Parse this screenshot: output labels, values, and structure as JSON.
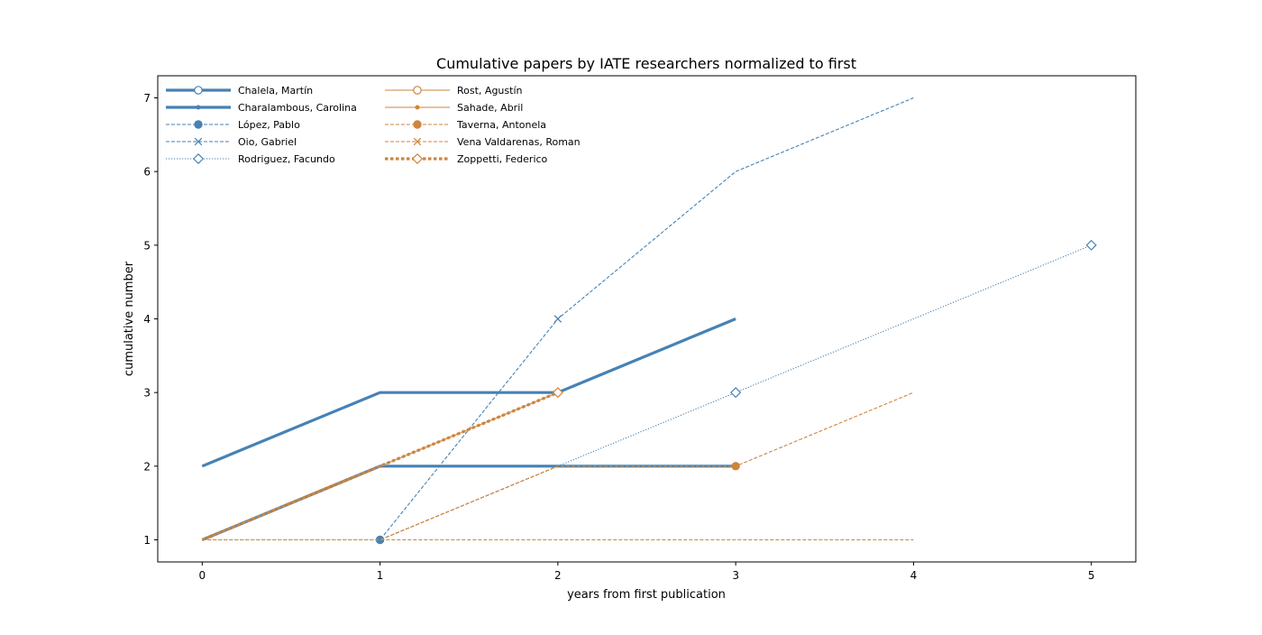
{
  "chart_data": {
    "type": "line",
    "title": "Cumulative papers by IATE researchers normalized to first",
    "xlabel": "years from first publication",
    "ylabel": "cumulative number",
    "xlim": [
      -0.25,
      5.25
    ],
    "ylim": [
      0.7,
      7.3
    ],
    "xticks": [
      0,
      1,
      2,
      3,
      4,
      5
    ],
    "yticks": [
      1,
      2,
      3,
      4,
      5,
      6,
      7
    ],
    "grid": false,
    "legend_position": "top-left",
    "legend_columns": 2,
    "colors": {
      "blue": "#4682b4",
      "orange": "#cd853f"
    },
    "series": [
      {
        "name": "Chalela, Martín",
        "x": [
          0,
          1,
          2,
          3
        ],
        "y": [
          2,
          3,
          3,
          4
        ],
        "color": "#4682b4",
        "line": "solid",
        "weight": "thick",
        "marker": "circle-open",
        "marker_points": []
      },
      {
        "name": "Charalambous, Carolina",
        "x": [
          0,
          1,
          2,
          3
        ],
        "y": [
          1,
          2,
          2,
          2
        ],
        "color": "#4682b4",
        "line": "solid",
        "weight": "thick",
        "marker": "point",
        "marker_points": []
      },
      {
        "name": "López, Pablo",
        "x": [
          0,
          1
        ],
        "y": [
          1,
          1
        ],
        "color": "#4682b4",
        "line": "dashed",
        "weight": "thin",
        "marker": "circle-filled",
        "marker_points": [
          1
        ]
      },
      {
        "name": "Oio, Gabriel",
        "x": [
          0,
          1,
          2,
          3,
          4
        ],
        "y": [
          1,
          1,
          4,
          6,
          7
        ],
        "color": "#4682b4",
        "line": "dashed",
        "weight": "thin",
        "marker": "x",
        "marker_points": [
          2
        ]
      },
      {
        "name": "Rodriguez, Facundo",
        "x": [
          0,
          1,
          2,
          3,
          4,
          5
        ],
        "y": [
          1,
          1,
          2,
          3,
          4,
          5
        ],
        "color": "#4682b4",
        "line": "dotted",
        "weight": "thin",
        "marker": "diamond-open",
        "marker_points": [
          3,
          5
        ]
      },
      {
        "name": "Rost, Agustín",
        "x": [
          0,
          1,
          2
        ],
        "y": [
          1,
          2,
          3
        ],
        "color": "#cd853f",
        "line": "solid",
        "weight": "thin",
        "marker": "circle-open",
        "marker_points": []
      },
      {
        "name": "Sahade, Abril",
        "x": [
          0,
          1
        ],
        "y": [
          1,
          2
        ],
        "color": "#cd853f",
        "line": "solid",
        "weight": "thin",
        "marker": "point",
        "marker_points": []
      },
      {
        "name": "Taverna, Antonela",
        "x": [
          0,
          1,
          2,
          3
        ],
        "y": [
          1,
          1,
          2,
          2
        ],
        "color": "#cd853f",
        "line": "dashed",
        "weight": "thin",
        "marker": "circle-filled",
        "marker_points": [
          3
        ]
      },
      {
        "name": "Vena Valdarenas, Roman",
        "x": [
          0,
          1,
          2,
          3,
          4
        ],
        "y": [
          1,
          1,
          1,
          1,
          1
        ],
        "color": "#cd853f",
        "line": "dashed",
        "weight": "thin",
        "marker": "x",
        "marker_points": []
      },
      {
        "name": "Zoppetti, Federico",
        "x": [
          0,
          1,
          2
        ],
        "y": [
          1,
          2,
          3
        ],
        "color": "#cd853f",
        "line": "dotted",
        "weight": "thick",
        "marker": "diamond-open",
        "marker_points": [
          2
        ]
      },
      {
        "name": "",
        "x": [
          0,
          1,
          2,
          3,
          4
        ],
        "y": [
          1,
          1,
          2,
          2,
          3
        ],
        "color": "#cd853f",
        "line": "dashed",
        "weight": "thin",
        "marker": "none",
        "marker_points": []
      }
    ]
  }
}
